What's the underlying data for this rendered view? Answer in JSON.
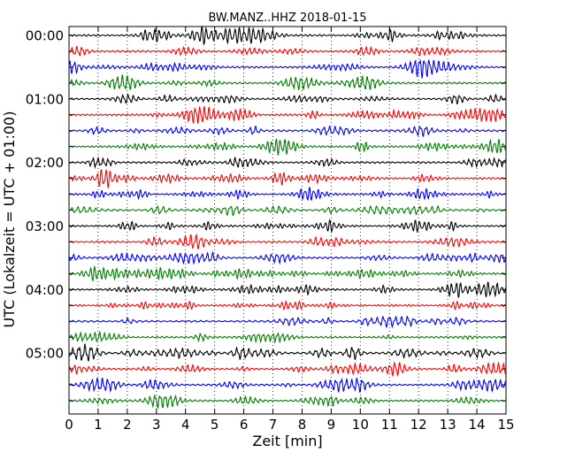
{
  "chart_data": {
    "type": "line",
    "title": "BW.MANZ..HHZ 2018-01-15",
    "xlabel": "Zeit  [min]",
    "ylabel": "UTC (Lokalzeit = UTC + 01:00)",
    "xlim": [
      0,
      15
    ],
    "xticks": [
      "0",
      "1",
      "2",
      "3",
      "4",
      "5",
      "6",
      "7",
      "8",
      "9",
      "10",
      "11",
      "12",
      "13",
      "14",
      "15"
    ],
    "yticks": [
      "00:00",
      "01:00",
      "02:00",
      "03:00",
      "04:00",
      "05:00"
    ],
    "rows_per_hour": 4,
    "trace_count": 24,
    "trace_interval_minutes": 15,
    "colors": [
      "#000000",
      "#ff0000",
      "#0000ff",
      "#008000"
    ],
    "grid": {
      "x": "dotted",
      "y": "none"
    }
  }
}
